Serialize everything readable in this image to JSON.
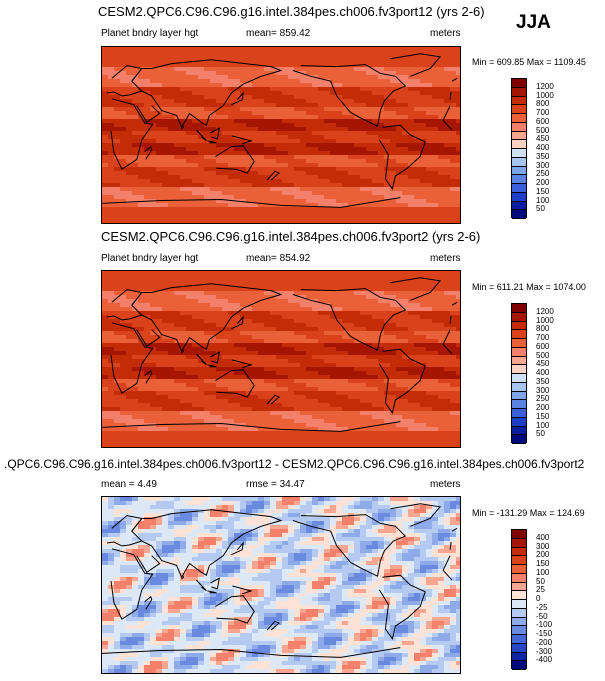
{
  "season": "JJA",
  "panels": [
    {
      "title": "CESM2.QPC6.C96.C96.g16.intel.384pes.ch006.fv3port12 (yrs 2-6)",
      "left_label": "Planet bndry layer hgt",
      "center_label": "mean= 859.42",
      "right_label": "meters",
      "minmax": "Min = 609.85 Max = 1109.45",
      "levels": [
        "1200",
        "1000",
        "800",
        "700",
        "600",
        "500",
        "450",
        "400",
        "350",
        "300",
        "250",
        "200",
        "150",
        "100",
        "50"
      ],
      "colors": [
        "#7f0000",
        "#a51500",
        "#c42b07",
        "#d9421a",
        "#ea6038",
        "#f2806a",
        "#f7a691",
        "#fbd2c2",
        "#d0e0f5",
        "#a7c4ef",
        "#7ea4e8",
        "#5a82e0",
        "#3a5fd8",
        "#1f3ec6",
        "#0b1f9e",
        "#000a7a"
      ],
      "map_type": "absolute"
    },
    {
      "title": "CESM2.QPC6.C96.C96.g16.intel.384pes.ch006.fv3port2 (yrs 2-6)",
      "left_label": "Planet bndry layer hgt",
      "center_label": "mean= 854.92",
      "right_label": "meters",
      "minmax": "Min = 611.21 Max = 1074.00",
      "levels": [
        "1200",
        "1000",
        "800",
        "700",
        "600",
        "500",
        "450",
        "400",
        "350",
        "300",
        "250",
        "200",
        "150",
        "100",
        "50"
      ],
      "colors": [
        "#7f0000",
        "#a51500",
        "#c42b07",
        "#d9421a",
        "#ea6038",
        "#f2806a",
        "#f7a691",
        "#fbd2c2",
        "#d0e0f5",
        "#a7c4ef",
        "#7ea4e8",
        "#5a82e0",
        "#3a5fd8",
        "#1f3ec6",
        "#0b1f9e",
        "#000a7a"
      ],
      "map_type": "absolute"
    },
    {
      "title": ".QPC6.C96.C96.g16.intel.384pes.ch006.fv3port12 - CESM2.QPC6.C96.C96.g16.intel.384pes.ch006.fv3port2",
      "left_label": "mean =   4.49",
      "center_label": "rmse =  34.47",
      "right_label": "meters",
      "minmax": "Min = -131.29 Max = 124.69",
      "levels": [
        "400",
        "300",
        "200",
        "150",
        "100",
        "50",
        "25",
        "0",
        "-25",
        "-50",
        "-100",
        "-150",
        "-200",
        "-300",
        "-400"
      ],
      "colors": [
        "#7f0000",
        "#a51500",
        "#c42b07",
        "#d9421a",
        "#ea6038",
        "#f2806a",
        "#f7a691",
        "#fde2d5",
        "#dde8f7",
        "#b5caf0",
        "#8eaae8",
        "#6a8ae0",
        "#4566d6",
        "#2845c6",
        "#0f25a4",
        "#000a7a"
      ],
      "map_type": "difference"
    }
  ],
  "chart_data": {
    "type": "heatmap",
    "title": "JJA",
    "variable": "Planet bndry layer hgt",
    "units": "meters",
    "panels": [
      {
        "case": "CESM2.QPC6.C96.C96.g16.intel.384pes.ch006.fv3port12 (yrs 2-6)",
        "mean": 859.42,
        "min": 609.85,
        "max": 1109.45
      },
      {
        "case": "CESM2.QPC6.C96.C96.g16.intel.384pes.ch006.fv3port2 (yrs 2-6)",
        "mean": 854.92,
        "min": 611.21,
        "max": 1074.0
      },
      {
        "case": "difference",
        "mean": 4.49,
        "rmse": 34.47,
        "min": -131.29,
        "max": 124.69
      }
    ]
  }
}
